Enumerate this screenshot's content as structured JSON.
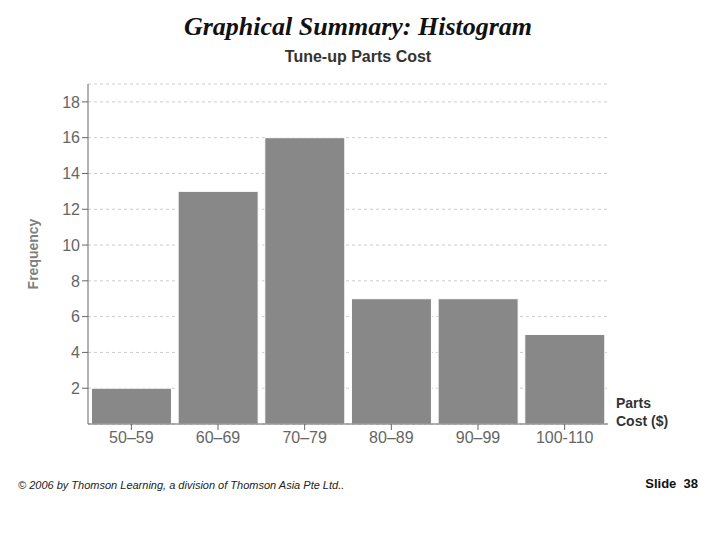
{
  "chart_data": {
    "type": "bar",
    "title": "Graphical Summary: Histogram",
    "subtitle": "Tune-up Parts Cost",
    "categories": [
      "50–59",
      "60–69",
      "70–79",
      "80–89",
      "90–99",
      "100-110"
    ],
    "values": [
      2,
      13,
      16,
      7,
      7,
      5
    ],
    "color": "#888888",
    "ylabel": "Frequency",
    "xlabel": "Parts\nCost ($)",
    "ylim": [
      0,
      19
    ],
    "yticks": [
      2,
      4,
      6,
      8,
      10,
      12,
      14,
      16,
      18
    ],
    "grid": true,
    "annotations": [
      "© 2006 by Thomson Learning, a division of Thomson Asia Pte Ltd..",
      "Slide  38"
    ]
  }
}
